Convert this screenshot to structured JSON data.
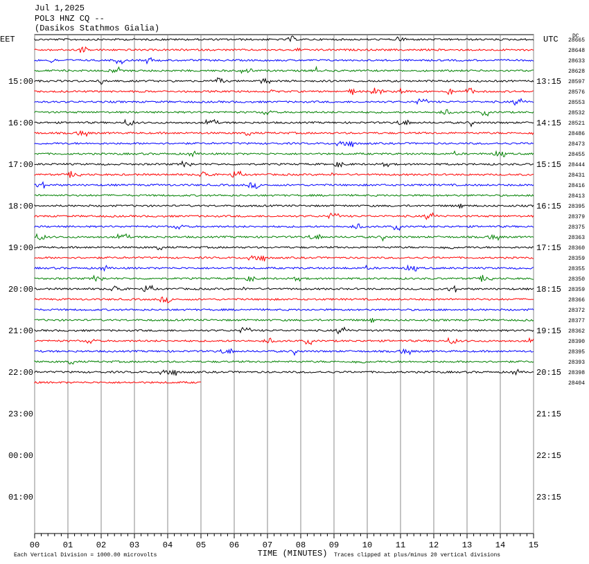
{
  "header": {
    "date": "Jul 1,2025",
    "station": "POL3 HNZ CQ --",
    "location": "(Dasikos Stathmos Gialia)"
  },
  "left_axis": {
    "label": "EET",
    "ticks": [
      "15:00",
      "16:00",
      "17:00",
      "18:00",
      "19:00",
      "20:00",
      "21:00",
      "22:00",
      "23:00",
      "00:00",
      "01:00"
    ]
  },
  "right_axis": {
    "label": "UTC",
    "ticks": [
      "13:15",
      "14:15",
      "15:15",
      "16:15",
      "17:15",
      "18:15",
      "19:15",
      "20:15",
      "21:15",
      "22:15",
      "23:15"
    ]
  },
  "corner_label": "DC",
  "trace_levels": [
    28665,
    28648,
    28633,
    28628,
    28597,
    28576,
    28553,
    28532,
    28521,
    28486,
    28473,
    28455,
    28444,
    28431,
    28416,
    28413,
    28395,
    28379,
    28375,
    28363,
    28360,
    28359,
    28355,
    28350,
    28359,
    28366,
    28372,
    28377,
    28362,
    28390,
    28395,
    28393,
    28398,
    28404
  ],
  "trace_colors": [
    "#000000",
    "#ff0000",
    "#0000ff",
    "#008000"
  ],
  "x_axis": {
    "label": "TIME (MINUTES)",
    "ticks": [
      "00",
      "01",
      "02",
      "03",
      "04",
      "05",
      "06",
      "07",
      "08",
      "09",
      "10",
      "11",
      "12",
      "13",
      "14",
      "15"
    ]
  },
  "footer": {
    "left": "Each Vertical Division = 1000.00 microvolts",
    "right": "Traces clipped at plus/minus 20 vertical divisions"
  }
}
